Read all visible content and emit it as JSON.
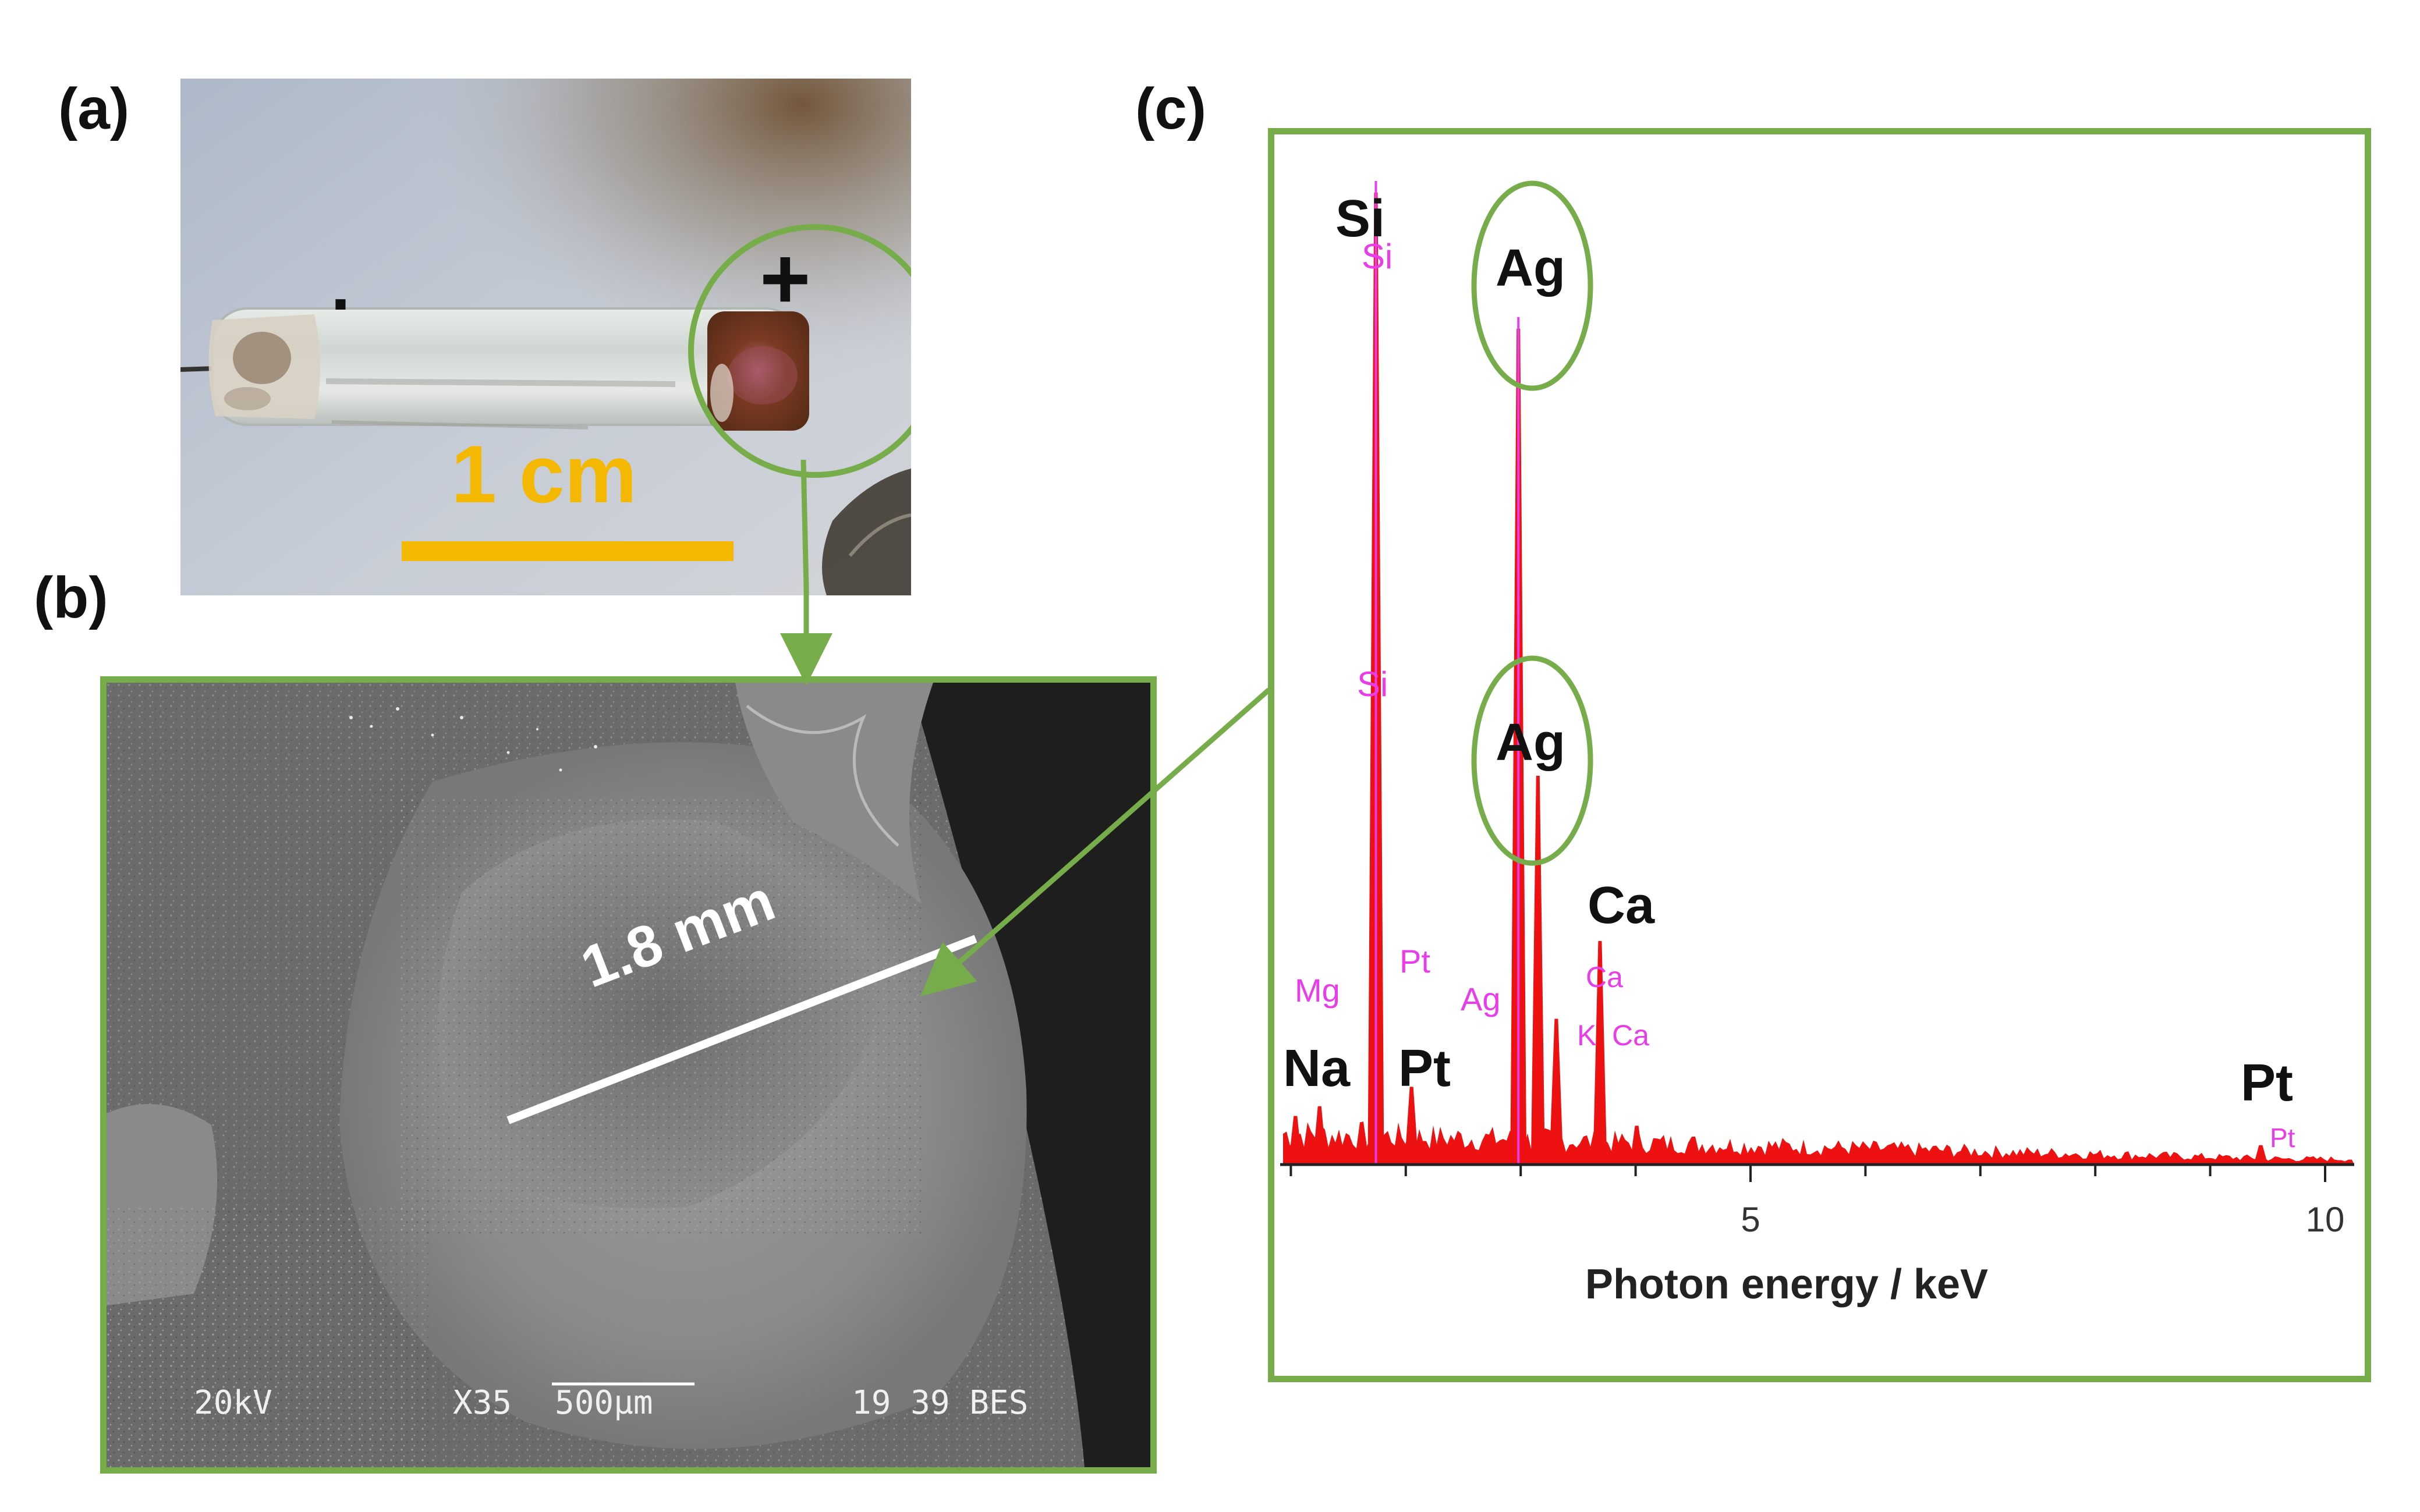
{
  "panels": {
    "a": {
      "label": "(a)",
      "minus_sign": "-",
      "plus_sign": "+",
      "scale_label": "1 cm"
    },
    "b": {
      "label": "(b)",
      "measurement": "1.8 mm",
      "info_kv": "20kV",
      "info_mag": "X35",
      "info_scale": "500μm",
      "info_id": "19 39 BES"
    },
    "c": {
      "label": "(c)",
      "xlabel": "Photon energy / keV",
      "tick_5": "5",
      "tick_10": "10",
      "peak_labels": {
        "si": "Si",
        "ag_top": "Ag",
        "ag_mid": "Ag",
        "ca": "Ca",
        "na": "Na",
        "pt_left": "Pt",
        "pt_right": "Pt"
      },
      "software_labels": {
        "si_top": "Si",
        "si_mid": "Si",
        "mg": "Mg",
        "pt_a": "Pt",
        "ag_small": "Ag",
        "ca_a": "Ca",
        "ca_b": "Ca",
        "k_a": "K",
        "pt_far": "Pt"
      }
    }
  },
  "colors": {
    "frame_green": "#76ad4a",
    "spectrum_red": "#ee1111",
    "label_magenta": "#e83de8",
    "scale_orange": "#f5b800"
  },
  "chart_data": {
    "type": "line",
    "xlabel": "Photon energy / keV",
    "xlim": [
      0.6,
      10.3
    ],
    "ylim": [
      0,
      100
    ],
    "x_ticks": [
      5,
      10
    ],
    "grid": false,
    "series": [
      {
        "peaks": [
          {
            "element": "Na",
            "energy_keV": 1.04,
            "intensity": 5
          },
          {
            "element": "Mg",
            "energy_keV": 1.25,
            "intensity": 6
          },
          {
            "element": "Si",
            "energy_keV": 1.74,
            "intensity": 100
          },
          {
            "element": "Pt",
            "energy_keV": 2.05,
            "intensity": 8
          },
          {
            "element": "Ag",
            "energy_keV": 2.98,
            "intensity": 86
          },
          {
            "element": "Ag",
            "energy_keV": 3.15,
            "intensity": 40
          },
          {
            "element": "K",
            "energy_keV": 3.31,
            "intensity": 15
          },
          {
            "element": "Ca",
            "energy_keV": 3.69,
            "intensity": 23
          },
          {
            "element": "Ca",
            "energy_keV": 4.01,
            "intensity": 4
          },
          {
            "element": "Pt",
            "energy_keV": 9.44,
            "intensity": 2
          }
        ]
      }
    ]
  }
}
